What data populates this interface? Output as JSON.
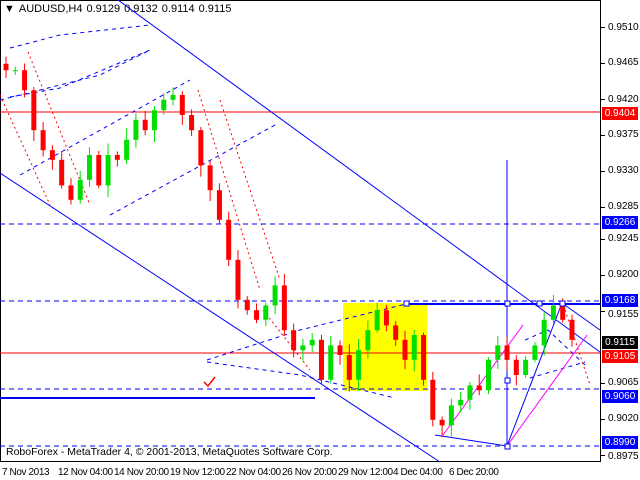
{
  "header": {
    "symbol": "AUDUSD,H4",
    "open": "0.9129",
    "high": "0.9132",
    "low": "0.9114",
    "close": "0.9115"
  },
  "copyright": "RoboForex - MetaTrader 4, © 2001-2013, MetaQuotes Software Corp.",
  "colors": {
    "bull": "#00e000",
    "bear": "#ff0000",
    "grid_line": "#0000ff",
    "resistance": "#ff0000",
    "zone": "#ffff00"
  },
  "chart_data": {
    "type": "candlestick",
    "symbol": "AUDUSD",
    "timeframe": "H4",
    "ylim": [
      0.896,
      0.9545
    ],
    "y_ticks": [
      "0.9510",
      "0.9465",
      "0.9420",
      "0.9375",
      "0.9330",
      "0.9285",
      "0.9245",
      "0.9200",
      "0.9155",
      "0.9065",
      "0.9020",
      "0.8975"
    ],
    "x_ticks": [
      "7 Nov 2013",
      "12 Nov 04:00",
      "14 Nov 20:00",
      "19 Nov 12:00",
      "22 Nov 04:00",
      "26 Nov 20:00",
      "29 Nov 12:00",
      "4 Dec 04:00",
      "6 Dec 20:00"
    ],
    "closes": [
      0.9456,
      0.9456,
      0.9431,
      0.9381,
      0.9356,
      0.9344,
      0.9312,
      0.9294,
      0.9319,
      0.935,
      0.9312,
      0.935,
      0.9344,
      0.9369,
      0.9394,
      0.9381,
      0.9406,
      0.9419,
      0.9425,
      0.94,
      0.9381,
      0.9337,
      0.9306,
      0.9269,
      0.9219,
      0.9169,
      0.9156,
      0.9144,
      0.9162,
      0.9187,
      0.9131,
      0.9106,
      0.9112,
      0.9119,
      0.9069,
      0.9112,
      0.91,
      0.9069,
      0.9106,
      0.9131,
      0.9156,
      0.9137,
      0.9119,
      0.9094,
      0.9125,
      0.9069,
      0.9019,
      0.9012,
      0.9037,
      0.9044,
      0.9062,
      0.9056,
      0.9094,
      0.9112,
      0.9094,
      0.9075,
      0.9094,
      0.9112,
      0.9144,
      0.9162,
      0.9144,
      0.9119
    ],
    "price_levels": [
      {
        "label": "0.9404",
        "color": "#ff0000"
      },
      {
        "label": "0.9266",
        "color": "#0000ff"
      },
      {
        "label": "0.9168",
        "color": "#0000ff"
      },
      {
        "label": "0.9115",
        "color": "#000000"
      },
      {
        "label": "0.9105",
        "color": "#ff0000"
      },
      {
        "label": "0.9060",
        "color": "#0000ff"
      },
      {
        "label": "0.8990",
        "color": "#0000ff"
      }
    ]
  }
}
